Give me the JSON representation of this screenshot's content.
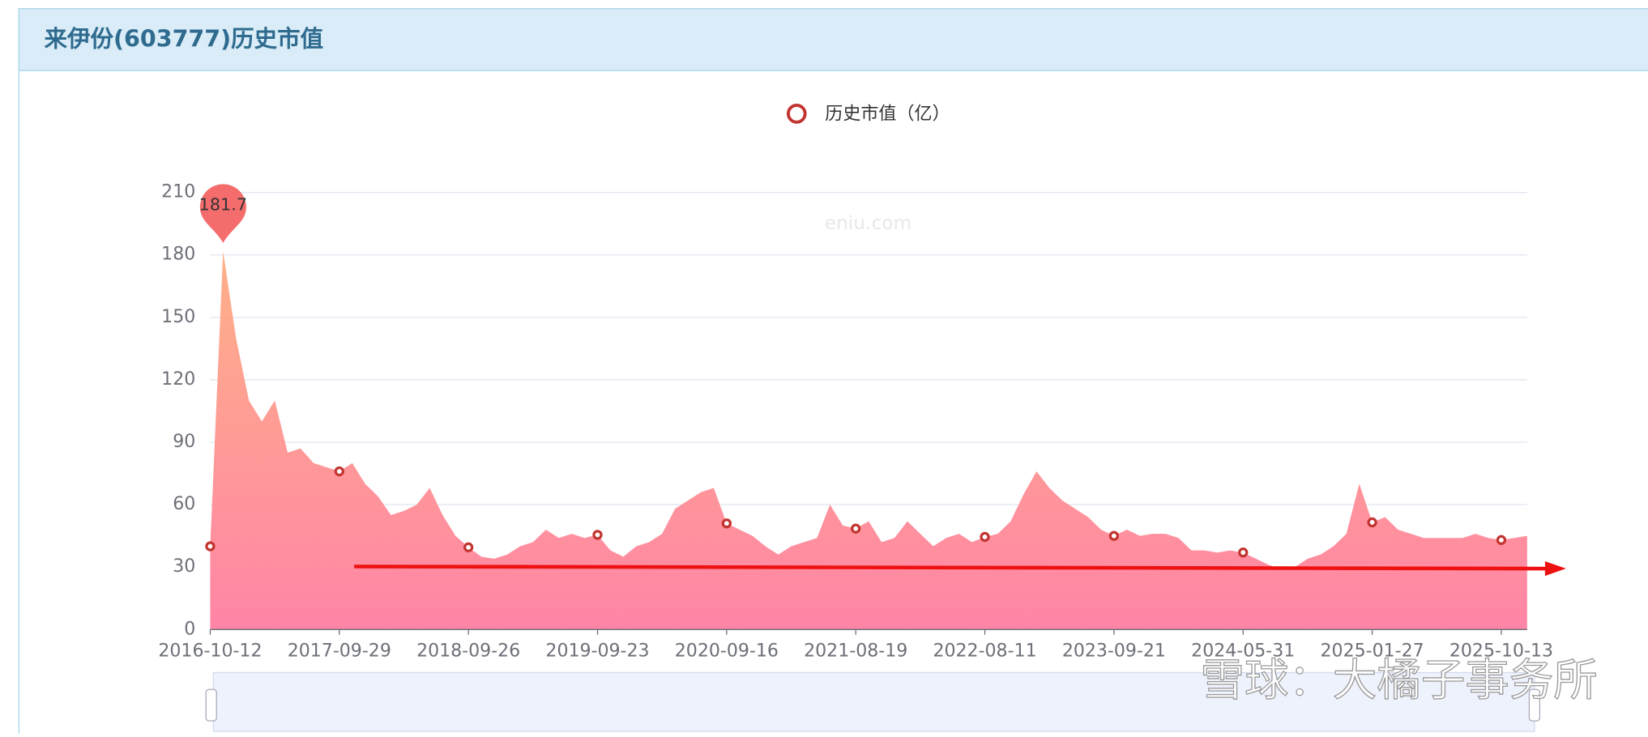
{
  "header": {
    "title": "来伊份(603777)历史市值"
  },
  "watermarks": [
    "eniu.com",
    "雪球：大橘子事务所"
  ],
  "chart_data": {
    "type": "area",
    "categories": [
      "2016-10-12",
      null,
      null,
      null,
      null,
      null,
      null,
      null,
      null,
      null,
      "2017-09-29",
      null,
      null,
      null,
      null,
      null,
      null,
      null,
      null,
      null,
      "2018-09-26",
      null,
      null,
      null,
      null,
      null,
      null,
      null,
      null,
      null,
      "2019-09-23",
      null,
      null,
      null,
      null,
      null,
      null,
      null,
      null,
      null,
      "2020-09-16",
      null,
      null,
      null,
      null,
      null,
      null,
      null,
      null,
      null,
      "2021-08-19",
      null,
      null,
      null,
      null,
      null,
      null,
      null,
      null,
      null,
      "2022-08-11",
      null,
      null,
      null,
      null,
      null,
      null,
      null,
      null,
      null,
      "2023-09-21",
      null,
      null,
      null,
      null,
      null,
      null,
      null,
      null,
      null,
      "2024-05-31",
      null,
      null,
      null,
      null,
      null,
      null,
      null,
      null,
      null,
      "2025-01-27",
      null,
      null,
      null,
      null,
      null,
      null,
      null,
      null,
      null,
      "2025-10-13",
      null,
      null
    ],
    "series": [
      {
        "name": "历史市值（亿）",
        "color": "#c23531",
        "values": [
          40,
          181.7,
          140,
          110,
          100,
          110,
          85,
          87,
          80,
          78,
          76,
          80,
          70,
          64,
          55,
          57,
          60,
          68,
          55,
          45,
          39.5,
          35,
          34,
          36,
          40,
          42,
          48,
          44,
          46,
          44,
          45.5,
          38,
          35,
          40,
          42,
          46,
          58,
          62,
          66,
          68,
          51,
          48,
          45,
          40,
          36,
          40,
          42,
          44,
          60,
          50,
          48.5,
          52,
          42,
          44,
          52,
          46,
          40,
          44,
          46,
          42,
          44.5,
          46,
          52,
          65,
          76,
          68,
          62,
          58,
          54,
          48,
          45,
          48,
          45,
          46,
          46,
          44,
          38,
          38,
          37,
          38,
          37,
          34,
          31,
          29,
          30,
          34,
          36,
          40,
          46,
          70,
          51.5,
          54,
          48,
          46,
          44,
          44,
          44,
          44,
          46,
          44,
          43,
          44,
          45
        ]
      }
    ],
    "ylim": [
      0,
      210
    ],
    "yticks": [
      0,
      30,
      60,
      90,
      120,
      150,
      180,
      210
    ],
    "grid": true
  }
}
